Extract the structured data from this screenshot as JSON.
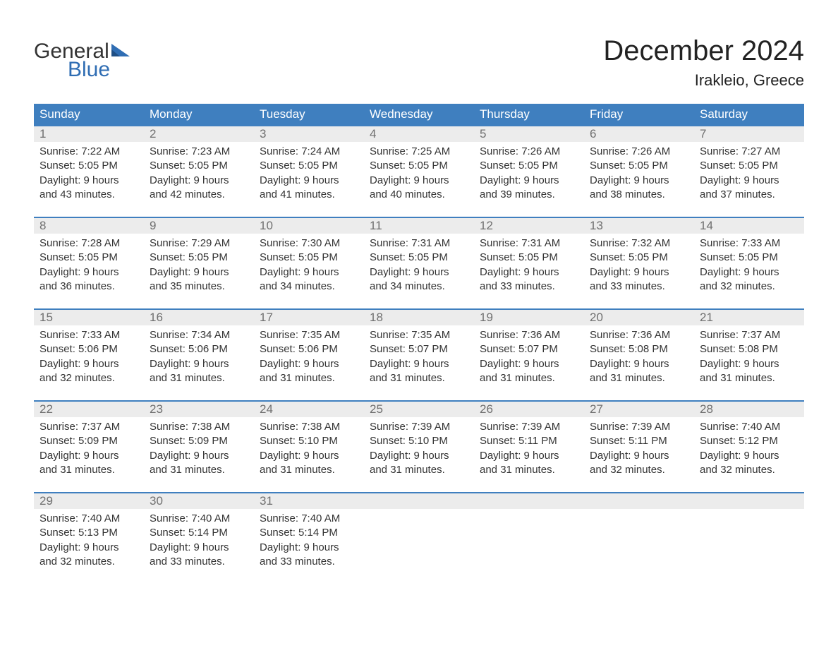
{
  "logo": {
    "line1": "General",
    "line2": "Blue"
  },
  "title": "December 2024",
  "location": "Irakleio, Greece",
  "colors": {
    "header_bg": "#3f7fbf",
    "header_text": "#ffffff",
    "daynum_bg": "#ececec",
    "daynum_text": "#6f6f6f",
    "body_text": "#333333",
    "logo_blue": "#2f6db3",
    "row_border": "#3f7fbf",
    "page_bg": "#ffffff"
  },
  "weekdays": [
    "Sunday",
    "Monday",
    "Tuesday",
    "Wednesday",
    "Thursday",
    "Friday",
    "Saturday"
  ],
  "weeks": [
    [
      {
        "n": "1",
        "sunrise": "Sunrise: 7:22 AM",
        "sunset": "Sunset: 5:05 PM",
        "d1": "Daylight: 9 hours",
        "d2": "and 43 minutes."
      },
      {
        "n": "2",
        "sunrise": "Sunrise: 7:23 AM",
        "sunset": "Sunset: 5:05 PM",
        "d1": "Daylight: 9 hours",
        "d2": "and 42 minutes."
      },
      {
        "n": "3",
        "sunrise": "Sunrise: 7:24 AM",
        "sunset": "Sunset: 5:05 PM",
        "d1": "Daylight: 9 hours",
        "d2": "and 41 minutes."
      },
      {
        "n": "4",
        "sunrise": "Sunrise: 7:25 AM",
        "sunset": "Sunset: 5:05 PM",
        "d1": "Daylight: 9 hours",
        "d2": "and 40 minutes."
      },
      {
        "n": "5",
        "sunrise": "Sunrise: 7:26 AM",
        "sunset": "Sunset: 5:05 PM",
        "d1": "Daylight: 9 hours",
        "d2": "and 39 minutes."
      },
      {
        "n": "6",
        "sunrise": "Sunrise: 7:26 AM",
        "sunset": "Sunset: 5:05 PM",
        "d1": "Daylight: 9 hours",
        "d2": "and 38 minutes."
      },
      {
        "n": "7",
        "sunrise": "Sunrise: 7:27 AM",
        "sunset": "Sunset: 5:05 PM",
        "d1": "Daylight: 9 hours",
        "d2": "and 37 minutes."
      }
    ],
    [
      {
        "n": "8",
        "sunrise": "Sunrise: 7:28 AM",
        "sunset": "Sunset: 5:05 PM",
        "d1": "Daylight: 9 hours",
        "d2": "and 36 minutes."
      },
      {
        "n": "9",
        "sunrise": "Sunrise: 7:29 AM",
        "sunset": "Sunset: 5:05 PM",
        "d1": "Daylight: 9 hours",
        "d2": "and 35 minutes."
      },
      {
        "n": "10",
        "sunrise": "Sunrise: 7:30 AM",
        "sunset": "Sunset: 5:05 PM",
        "d1": "Daylight: 9 hours",
        "d2": "and 34 minutes."
      },
      {
        "n": "11",
        "sunrise": "Sunrise: 7:31 AM",
        "sunset": "Sunset: 5:05 PM",
        "d1": "Daylight: 9 hours",
        "d2": "and 34 minutes."
      },
      {
        "n": "12",
        "sunrise": "Sunrise: 7:31 AM",
        "sunset": "Sunset: 5:05 PM",
        "d1": "Daylight: 9 hours",
        "d2": "and 33 minutes."
      },
      {
        "n": "13",
        "sunrise": "Sunrise: 7:32 AM",
        "sunset": "Sunset: 5:05 PM",
        "d1": "Daylight: 9 hours",
        "d2": "and 33 minutes."
      },
      {
        "n": "14",
        "sunrise": "Sunrise: 7:33 AM",
        "sunset": "Sunset: 5:05 PM",
        "d1": "Daylight: 9 hours",
        "d2": "and 32 minutes."
      }
    ],
    [
      {
        "n": "15",
        "sunrise": "Sunrise: 7:33 AM",
        "sunset": "Sunset: 5:06 PM",
        "d1": "Daylight: 9 hours",
        "d2": "and 32 minutes."
      },
      {
        "n": "16",
        "sunrise": "Sunrise: 7:34 AM",
        "sunset": "Sunset: 5:06 PM",
        "d1": "Daylight: 9 hours",
        "d2": "and 31 minutes."
      },
      {
        "n": "17",
        "sunrise": "Sunrise: 7:35 AM",
        "sunset": "Sunset: 5:06 PM",
        "d1": "Daylight: 9 hours",
        "d2": "and 31 minutes."
      },
      {
        "n": "18",
        "sunrise": "Sunrise: 7:35 AM",
        "sunset": "Sunset: 5:07 PM",
        "d1": "Daylight: 9 hours",
        "d2": "and 31 minutes."
      },
      {
        "n": "19",
        "sunrise": "Sunrise: 7:36 AM",
        "sunset": "Sunset: 5:07 PM",
        "d1": "Daylight: 9 hours",
        "d2": "and 31 minutes."
      },
      {
        "n": "20",
        "sunrise": "Sunrise: 7:36 AM",
        "sunset": "Sunset: 5:08 PM",
        "d1": "Daylight: 9 hours",
        "d2": "and 31 minutes."
      },
      {
        "n": "21",
        "sunrise": "Sunrise: 7:37 AM",
        "sunset": "Sunset: 5:08 PM",
        "d1": "Daylight: 9 hours",
        "d2": "and 31 minutes."
      }
    ],
    [
      {
        "n": "22",
        "sunrise": "Sunrise: 7:37 AM",
        "sunset": "Sunset: 5:09 PM",
        "d1": "Daylight: 9 hours",
        "d2": "and 31 minutes."
      },
      {
        "n": "23",
        "sunrise": "Sunrise: 7:38 AM",
        "sunset": "Sunset: 5:09 PM",
        "d1": "Daylight: 9 hours",
        "d2": "and 31 minutes."
      },
      {
        "n": "24",
        "sunrise": "Sunrise: 7:38 AM",
        "sunset": "Sunset: 5:10 PM",
        "d1": "Daylight: 9 hours",
        "d2": "and 31 minutes."
      },
      {
        "n": "25",
        "sunrise": "Sunrise: 7:39 AM",
        "sunset": "Sunset: 5:10 PM",
        "d1": "Daylight: 9 hours",
        "d2": "and 31 minutes."
      },
      {
        "n": "26",
        "sunrise": "Sunrise: 7:39 AM",
        "sunset": "Sunset: 5:11 PM",
        "d1": "Daylight: 9 hours",
        "d2": "and 31 minutes."
      },
      {
        "n": "27",
        "sunrise": "Sunrise: 7:39 AM",
        "sunset": "Sunset: 5:11 PM",
        "d1": "Daylight: 9 hours",
        "d2": "and 32 minutes."
      },
      {
        "n": "28",
        "sunrise": "Sunrise: 7:40 AM",
        "sunset": "Sunset: 5:12 PM",
        "d1": "Daylight: 9 hours",
        "d2": "and 32 minutes."
      }
    ],
    [
      {
        "n": "29",
        "sunrise": "Sunrise: 7:40 AM",
        "sunset": "Sunset: 5:13 PM",
        "d1": "Daylight: 9 hours",
        "d2": "and 32 minutes."
      },
      {
        "n": "30",
        "sunrise": "Sunrise: 7:40 AM",
        "sunset": "Sunset: 5:14 PM",
        "d1": "Daylight: 9 hours",
        "d2": "and 33 minutes."
      },
      {
        "n": "31",
        "sunrise": "Sunrise: 7:40 AM",
        "sunset": "Sunset: 5:14 PM",
        "d1": "Daylight: 9 hours",
        "d2": "and 33 minutes."
      },
      null,
      null,
      null,
      null
    ]
  ]
}
